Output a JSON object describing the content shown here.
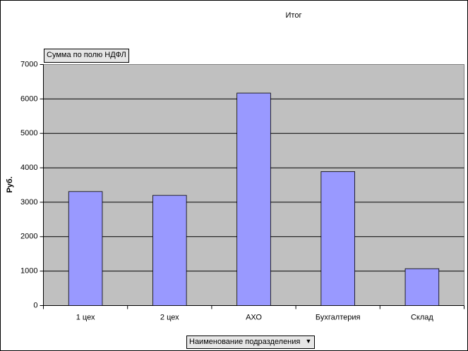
{
  "chart_data": {
    "type": "bar",
    "title": "Итог",
    "ylabel": "Руб.",
    "data_field": "Сумма по полю НДФЛ",
    "category_field": "Наименование подразделения",
    "categories": [
      "1 цех",
      "2 цех",
      "АХО",
      "Бухгалтерия",
      "Склад"
    ],
    "values": [
      3310,
      3200,
      6170,
      3890,
      1070
    ],
    "color": "#9999ff",
    "ylim": [
      0,
      7000
    ],
    "yticks": [
      0,
      1000,
      2000,
      3000,
      4000,
      5000,
      6000,
      7000
    ],
    "grid": true
  }
}
